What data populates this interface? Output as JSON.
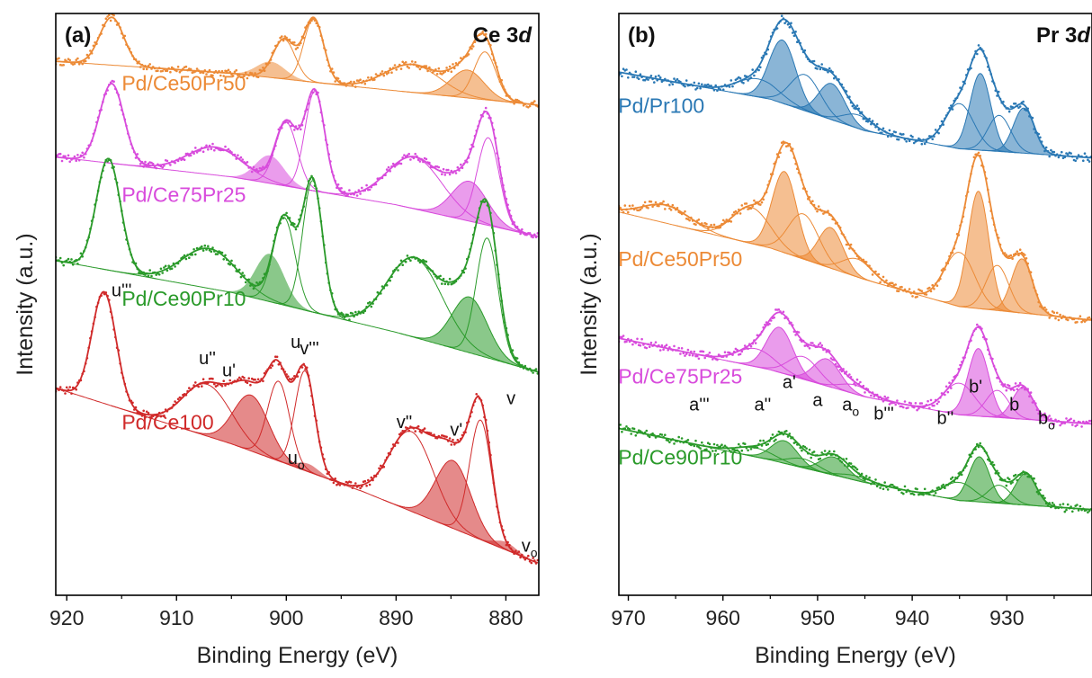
{
  "chart_data": [
    {
      "type": "line",
      "panel_label": "(a)",
      "title": "Ce 3",
      "title_italic": "d",
      "xlabel": "Binding Energy (eV)",
      "ylabel": "Intensity (a.u.)",
      "xlim": [
        921,
        877
      ],
      "x_ticks": [
        "920",
        "910",
        "900",
        "890",
        "880"
      ],
      "x_tick_values": [
        920,
        910,
        900,
        890,
        880
      ],
      "y_ticks_shown": false,
      "series": [
        {
          "name": "Pd/Ce50Pr50",
          "color": "#ec8a36",
          "baseline_points": [
            [
              921,
              0.96
            ],
            [
              905,
              0.93
            ],
            [
              895,
              0.9
            ],
            [
              877,
              0.85
            ]
          ],
          "peaks": [
            [
              915.9,
              0.12,
              1.1
            ],
            [
              900.2,
              0.1,
              1.0
            ],
            [
              897.5,
              0.16,
              0.9
            ],
            [
              888.5,
              0.07,
              2.5
            ],
            [
              881.9,
              0.12,
              1.0
            ],
            [
              883.5,
              0.07,
              1.5
            ]
          ],
          "filled": [
            [
              901.4,
              0.04,
              1.3
            ],
            [
              883.5,
              0.07,
              1.5
            ]
          ]
        },
        {
          "name": "Pd/Ce75Pr25",
          "color": "#d84bdc",
          "baseline_points": [
            [
              921,
              0.72
            ],
            [
              905,
              0.67
            ],
            [
              890,
              0.6
            ],
            [
              877,
              0.52
            ]
          ],
          "peaks": [
            [
              915.9,
              0.2,
              1.1
            ],
            [
              906.5,
              0.07,
              2.5
            ],
            [
              900.0,
              0.16,
              1.0
            ],
            [
              897.4,
              0.25,
              0.9
            ],
            [
              888.3,
              0.13,
              2.5
            ],
            [
              881.6,
              0.22,
              1.0
            ],
            [
              883.3,
              0.1,
              1.6
            ]
          ],
          "filled": [
            [
              901.5,
              0.07,
              1.3
            ],
            [
              883.3,
              0.1,
              1.6
            ]
          ]
        },
        {
          "name": "Pd/Ce90Pr10",
          "color": "#2a9a2a",
          "baseline_points": [
            [
              921,
              0.46
            ],
            [
              905,
              0.38
            ],
            [
              890,
              0.28
            ],
            [
              877,
              0.18
            ]
          ],
          "peaks": [
            [
              916.2,
              0.28,
              1.1
            ],
            [
              907.0,
              0.1,
              2.5
            ],
            [
              900.2,
              0.22,
              1.0
            ],
            [
              897.6,
              0.33,
              0.9
            ],
            [
              888.3,
              0.2,
              2.5
            ],
            [
              881.7,
              0.3,
              1.0
            ],
            [
              883.3,
              0.14,
              1.6
            ]
          ],
          "filled": [
            [
              901.5,
              0.12,
              1.3
            ],
            [
              883.3,
              0.14,
              1.6
            ]
          ]
        },
        {
          "name": "Pd/Ce100",
          "color": "#d02a2a",
          "baseline_points": [
            [
              921,
              0.14
            ],
            [
              905,
              0.0
            ],
            [
              893,
              -0.12
            ],
            [
              877,
              -0.3
            ]
          ],
          "peaks": [
            [
              916.6,
              0.28,
              1.1
            ],
            [
              907.2,
              0.13,
              2.2
            ],
            [
              903.2,
              0.14,
              1.6
            ],
            [
              900.7,
              0.2,
              1.0
            ],
            [
              898.3,
              0.25,
              0.9
            ],
            [
              888.6,
              0.2,
              2.0
            ],
            [
              884.8,
              0.17,
              1.6
            ],
            [
              882.3,
              0.3,
              1.0
            ]
          ],
          "filled": [
            [
              903.2,
              0.14,
              1.6
            ],
            [
              884.8,
              0.17,
              1.6
            ],
            [
              898.0,
              0.02,
              1.0
            ],
            [
              880.0,
              0.02,
              1.0
            ]
          ]
        }
      ],
      "peak_labels": [
        {
          "text": "u'''",
          "sub": "",
          "x": 915.5,
          "y": 0.37
        },
        {
          "text": "u''",
          "sub": "",
          "x": 907.6,
          "y": 0.2
        },
        {
          "text": "u'",
          "sub": "",
          "x": 904.0,
          "y": 0.17
        },
        {
          "text": "u",
          "sub": "",
          "x": 901.2,
          "y": 0.24
        },
        {
          "text": "v'''",
          "sub": "",
          "x": 896.5,
          "y": 0.22
        },
        {
          "text": "u",
          "sub": "o",
          "x": 898.7,
          "y": -0.05
        },
        {
          "text": "v''",
          "sub": "",
          "x": 889.0,
          "y": 0.04
        },
        {
          "text": "v'",
          "sub": "",
          "x": 885.5,
          "y": 0.02
        },
        {
          "text": "v",
          "sub": "",
          "x": 881.0,
          "y": 0.1
        },
        {
          "text": "v",
          "sub": "o",
          "x": 878.5,
          "y": -0.27
        }
      ]
    },
    {
      "type": "line",
      "panel_label": "(b)",
      "title": "Pr 3",
      "title_italic": "d",
      "xlabel": "Binding Energy (eV)",
      "ylabel": "Intensity (a.u.)",
      "xlim": [
        971,
        921
      ],
      "x_ticks": [
        "970",
        "960",
        "950",
        "940",
        "930"
      ],
      "x_tick_values": [
        970,
        960,
        950,
        940,
        930
      ],
      "y_ticks_shown": false,
      "series": [
        {
          "name": "Pd/Pr100",
          "color": "#2a78b4",
          "baseline_points": [
            [
              971,
              0.91
            ],
            [
              955,
              0.85
            ],
            [
              945,
              0.78
            ],
            [
              935,
              0.74
            ],
            [
              921,
              0.72
            ]
          ],
          "peaks": [
            [
              956.3,
              0.04,
              2.2
            ],
            [
              953.7,
              0.14,
              1.4
            ],
            [
              951.3,
              0.08,
              1.6
            ],
            [
              948.5,
              0.08,
              1.4
            ],
            [
              945.7,
              0.03,
              1.6
            ],
            [
              935.0,
              0.1,
              1.5
            ],
            [
              932.8,
              0.17,
              1.1
            ],
            [
              930.8,
              0.08,
              1.2
            ],
            [
              928.2,
              0.1,
              1.1
            ]
          ],
          "filled": [
            [
              953.7,
              0.14,
              1.4
            ],
            [
              948.5,
              0.08,
              1.4
            ],
            [
              932.8,
              0.17,
              1.1
            ],
            [
              928.2,
              0.1,
              1.1
            ]
          ]
        },
        {
          "name": "Pd/Ce50Pr50",
          "color": "#ec8a36",
          "baseline_points": [
            [
              971,
              0.6
            ],
            [
              955,
              0.52
            ],
            [
              945,
              0.45
            ],
            [
              935,
              0.39
            ],
            [
              921,
              0.36
            ]
          ],
          "peaks": [
            [
              966.0,
              0.04,
              2.5
            ],
            [
              957.0,
              0.08,
              2.0
            ],
            [
              953.5,
              0.18,
              1.3
            ],
            [
              951.5,
              0.1,
              1.6
            ],
            [
              948.6,
              0.09,
              1.3
            ],
            [
              945.8,
              0.04,
              1.6
            ],
            [
              935.0,
              0.12,
              1.6
            ],
            [
              933.0,
              0.26,
              1.1
            ],
            [
              931.0,
              0.1,
              1.2
            ],
            [
              928.4,
              0.12,
              1.1
            ]
          ],
          "filled": [
            [
              953.5,
              0.18,
              1.3
            ],
            [
              948.6,
              0.09,
              1.3
            ],
            [
              933.0,
              0.26,
              1.1
            ],
            [
              928.4,
              0.12,
              1.1
            ]
          ]
        },
        {
          "name": "Pd/Ce75Pr25",
          "color": "#d84bdc",
          "baseline_points": [
            [
              971,
              0.32
            ],
            [
              955,
              0.25
            ],
            [
              945,
              0.19
            ],
            [
              935,
              0.15
            ],
            [
              921,
              0.13
            ]
          ],
          "peaks": [
            [
              956.5,
              0.04,
              2.0
            ],
            [
              954.0,
              0.1,
              1.4
            ],
            [
              951.5,
              0.05,
              1.6
            ],
            [
              949.0,
              0.06,
              1.4
            ],
            [
              946.0,
              0.02,
              1.6
            ],
            [
              935.0,
              0.07,
              1.6
            ],
            [
              933.0,
              0.15,
              1.1
            ],
            [
              931.0,
              0.06,
              1.2
            ],
            [
              928.3,
              0.07,
              1.1
            ]
          ],
          "filled": [
            [
              954.0,
              0.1,
              1.4
            ],
            [
              949.0,
              0.06,
              1.4
            ],
            [
              933.0,
              0.15,
              1.1
            ],
            [
              928.3,
              0.07,
              1.1
            ]
          ]
        },
        {
          "name": "Pd/Ce90Pr10",
          "color": "#2a9a2a",
          "baseline_points": [
            [
              971,
              0.12
            ],
            [
              955,
              0.05
            ],
            [
              945,
              0.0
            ],
            [
              935,
              -0.04
            ],
            [
              921,
              -0.06
            ]
          ],
          "peaks": [
            [
              956.5,
              0.02,
              2.0
            ],
            [
              953.5,
              0.05,
              1.4
            ],
            [
              951.5,
              0.02,
              1.6
            ],
            [
              948.3,
              0.04,
              1.4
            ],
            [
              946.0,
              0.01,
              1.6
            ],
            [
              935.0,
              0.04,
              1.6
            ],
            [
              932.9,
              0.1,
              1.1
            ],
            [
              930.8,
              0.04,
              1.2
            ],
            [
              928.0,
              0.07,
              1.1
            ]
          ],
          "filled": [
            [
              953.5,
              0.05,
              1.4
            ],
            [
              948.3,
              0.04,
              1.4
            ],
            [
              932.9,
              0.1,
              1.1
            ],
            [
              928.0,
              0.07,
              1.1
            ]
          ]
        }
      ],
      "peak_labels": [
        {
          "text": "a'''",
          "sub": "",
          "x": 962.5,
          "y": 0.16
        },
        {
          "text": "a''",
          "sub": "",
          "x": 955.8,
          "y": 0.16
        },
        {
          "text": "a'",
          "sub": "",
          "x": 953.0,
          "y": 0.21
        },
        {
          "text": "a",
          "sub": "",
          "x": 950.0,
          "y": 0.17
        },
        {
          "text": "a",
          "sub": "o",
          "x": 946.5,
          "y": 0.16
        },
        {
          "text": "b'''",
          "sub": "",
          "x": 943.0,
          "y": 0.14
        },
        {
          "text": "b''",
          "sub": "",
          "x": 936.5,
          "y": 0.13
        },
        {
          "text": "b'",
          "sub": "",
          "x": 933.3,
          "y": 0.2
        },
        {
          "text": "b",
          "sub": "",
          "x": 929.2,
          "y": 0.16
        },
        {
          "text": "b",
          "sub": "o",
          "x": 925.8,
          "y": 0.13
        }
      ]
    }
  ]
}
